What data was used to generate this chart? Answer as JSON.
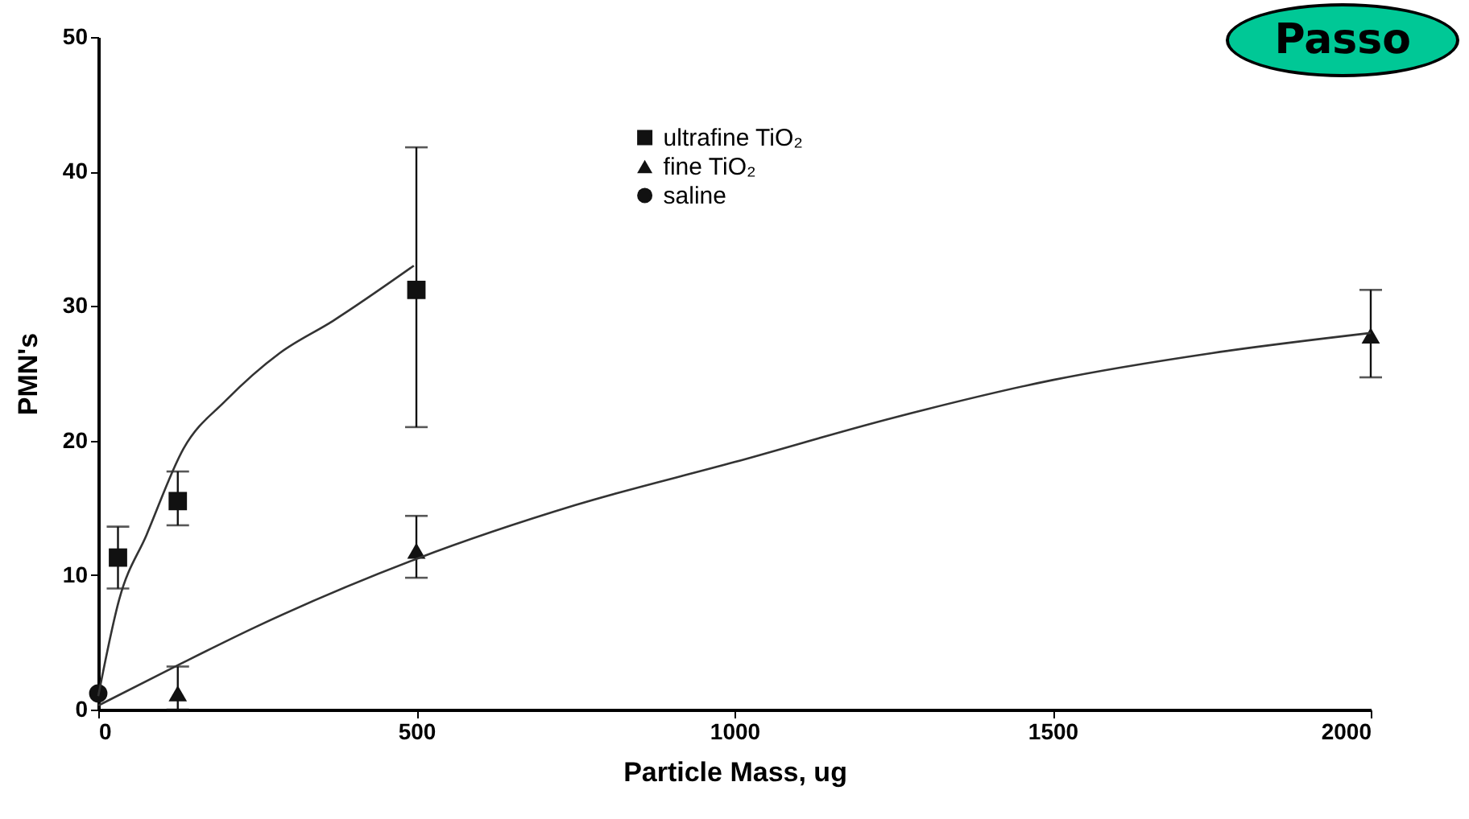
{
  "chart_data": {
    "type": "scatter",
    "xlabel": "Particle Mass, ug",
    "ylabel": "PMN's",
    "xlim": [
      0,
      2000
    ],
    "xticks": [
      0,
      500,
      1000,
      1500,
      2000
    ],
    "ylim": [
      0,
      50
    ],
    "yticks": [
      0,
      10,
      20,
      30,
      40,
      50
    ],
    "grid": false,
    "legend": "top",
    "annotations": [
      "Passo"
    ],
    "series": [
      {
        "name": "ultrafine TiO₂",
        "marker": "square",
        "color": "#111111",
        "x": [
          31,
          125,
          500
        ],
        "values": [
          11.3,
          15.5,
          31.2
        ],
        "errors": [
          [
            9,
            13.6
          ],
          [
            13.7,
            17.7
          ],
          [
            21,
            41.8
          ]
        ]
      },
      {
        "name": "fine TiO₂",
        "marker": "triangle",
        "color": "#111111",
        "x": [
          125,
          500,
          2000
        ],
        "values": [
          1.2,
          11.8,
          27.8
        ],
        "errors": [
          [
            0,
            3.2
          ],
          [
            9.8,
            14.4
          ],
          [
            24.7,
            31.2
          ]
        ]
      },
      {
        "name": "saline",
        "marker": "circle",
        "color": "#111111",
        "x": [
          0
        ],
        "values": [
          1.2
        ]
      },
      {
        "type": "line",
        "marker": "none",
        "line_style": "solid",
        "color": "#333333",
        "x": [
          0,
          33,
          76,
          134,
          201,
          285,
          369,
          496
        ],
        "values": [
          1,
          8.2,
          13,
          19.4,
          23,
          26.5,
          28.9,
          33
        ]
      },
      {
        "type": "line",
        "marker": "none",
        "line_style": "solid",
        "color": "#333333",
        "x": [
          0,
          125,
          250,
          500,
          750,
          1000,
          1250,
          1500,
          1750,
          2000
        ],
        "values": [
          0.3,
          3.3,
          6.2,
          11.2,
          15.2,
          18.4,
          21.7,
          24.5,
          26.5,
          28
        ]
      }
    ]
  }
}
